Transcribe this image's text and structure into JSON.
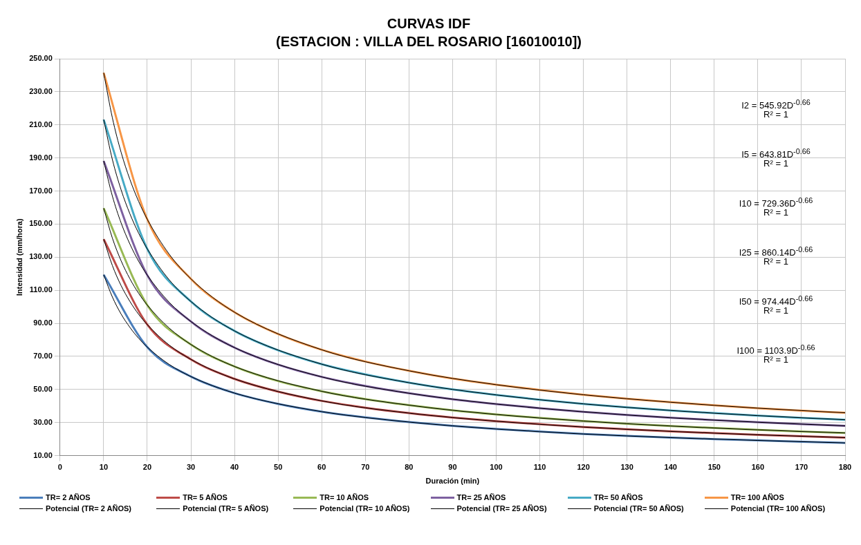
{
  "chart_data": {
    "type": "line",
    "title": "CURVAS IDF",
    "subtitle": "(ESTACION : VILLA DEL ROSARIO [16010010])",
    "xlabel": "Duración (min)",
    "ylabel": "Intensidad (mm/hora)",
    "xlim": [
      0,
      180
    ],
    "xticks": [
      0,
      10,
      20,
      30,
      40,
      50,
      60,
      70,
      80,
      90,
      100,
      110,
      120,
      130,
      140,
      150,
      160,
      170,
      180
    ],
    "ylim": [
      10,
      250
    ],
    "yticks": [
      {
        "value": 10,
        "label": "10.00"
      },
      {
        "value": 30,
        "label": "30.00"
      },
      {
        "value": 50,
        "label": "50.00"
      },
      {
        "value": 70,
        "label": "70.00"
      },
      {
        "value": 90,
        "label": "90.00"
      },
      {
        "value": 110,
        "label": "110.00"
      },
      {
        "value": 130,
        "label": "130.00"
      },
      {
        "value": 150,
        "label": "150.00"
      },
      {
        "value": 170,
        "label": "170.00"
      },
      {
        "value": 190,
        "label": "190.00"
      },
      {
        "value": 210,
        "label": "210.00"
      },
      {
        "value": 230,
        "label": "230.00"
      },
      {
        "value": 250,
        "label": "250.00"
      }
    ],
    "grid": true,
    "legend": "bottom",
    "marker": "none",
    "line_style": "solid",
    "x": [
      10,
      20,
      30,
      40,
      50,
      60,
      70,
      80,
      90,
      100,
      110,
      120,
      130,
      140,
      150,
      160,
      170,
      180
    ],
    "series": [
      {
        "name": "TR= 2 AÑOS",
        "color": "#4a7ebb",
        "values": [
          119.4,
          75.6,
          57.8,
          47.8,
          41.3,
          36.6,
          33.1,
          30.3,
          28.0,
          26.1,
          24.6,
          23.1,
          21.9,
          20.9,
          20.0,
          19.2,
          18.4,
          17.7
        ]
      },
      {
        "name": "TR= 5 AÑOS",
        "color": "#be4b48",
        "values": [
          140.9,
          89.2,
          68.2,
          56.4,
          48.7,
          43.1,
          39.0,
          35.7,
          33.0,
          30.8,
          29.0,
          27.3,
          25.9,
          24.7,
          23.6,
          22.6,
          21.7,
          20.9
        ]
      },
      {
        "name": "TR= 10 AÑOS",
        "color": "#98b954",
        "values": [
          159.6,
          101.0,
          77.2,
          63.9,
          55.1,
          48.9,
          44.2,
          40.5,
          37.4,
          34.9,
          32.8,
          30.9,
          29.3,
          27.9,
          26.7,
          25.6,
          24.6,
          23.7
        ]
      },
      {
        "name": "TR= 25 AÑOS",
        "color": "#7d60a0",
        "values": [
          188.2,
          119.1,
          91.1,
          75.3,
          65.0,
          57.6,
          52.1,
          47.7,
          44.1,
          41.2,
          38.7,
          36.5,
          34.6,
          32.9,
          31.5,
          30.2,
          29.0,
          28.0
        ]
      },
      {
        "name": "TR= 50 AÑOS",
        "color": "#46aac5",
        "values": [
          213.2,
          135.0,
          103.2,
          85.4,
          73.7,
          65.3,
          59.1,
          54.1,
          50.0,
          46.7,
          43.8,
          41.3,
          39.2,
          37.3,
          35.7,
          34.2,
          32.8,
          31.7
        ]
      },
      {
        "name": "TR= 100 AÑOS",
        "color": "#f79646",
        "values": [
          241.5,
          152.9,
          116.9,
          96.7,
          83.5,
          74.0,
          66.9,
          61.3,
          56.6,
          52.9,
          49.7,
          46.8,
          44.4,
          42.3,
          40.4,
          38.7,
          37.2,
          35.9
        ]
      },
      {
        "name": "Potencial (TR= 2 AÑOS)",
        "color": "#000000",
        "x": [
          10,
          12,
          14,
          16,
          18,
          20,
          25,
          30,
          40,
          60,
          80,
          100,
          120,
          140,
          160,
          180
        ],
        "values": [
          119.4,
          105.9,
          95.6,
          87.6,
          81.0,
          75.6,
          65.2,
          57.8,
          47.8,
          36.6,
          30.3,
          26.1,
          23.1,
          20.9,
          19.2,
          17.7
        ]
      },
      {
        "name": "Potencial (TR= 5 AÑOS)",
        "color": "#000000",
        "x": [
          10,
          12,
          14,
          16,
          18,
          20,
          25,
          30,
          40,
          60,
          80,
          100,
          120,
          140,
          160,
          180
        ],
        "values": [
          140.9,
          124.9,
          112.8,
          103.3,
          95.5,
          89.2,
          76.9,
          68.2,
          56.4,
          43.1,
          35.7,
          30.8,
          27.3,
          24.7,
          22.6,
          20.9
        ]
      },
      {
        "name": "Potencial (TR= 10 AÑOS)",
        "color": "#000000",
        "x": [
          10,
          12,
          14,
          16,
          18,
          20,
          25,
          30,
          40,
          60,
          80,
          100,
          120,
          140,
          160,
          180
        ],
        "values": [
          159.6,
          141.5,
          127.8,
          117.0,
          108.2,
          101.0,
          87.2,
          77.2,
          63.9,
          48.9,
          40.5,
          34.9,
          30.9,
          27.9,
          25.6,
          23.7
        ]
      },
      {
        "name": "Potencial (TR= 25 AÑOS)",
        "color": "#000000",
        "x": [
          10,
          12,
          14,
          16,
          18,
          20,
          25,
          30,
          40,
          60,
          80,
          100,
          120,
          140,
          160,
          180
        ],
        "values": [
          188.2,
          166.9,
          150.7,
          138.0,
          127.6,
          119.1,
          102.8,
          91.1,
          75.3,
          57.6,
          47.7,
          41.2,
          36.5,
          32.9,
          30.2,
          28.0
        ]
      },
      {
        "name": "Potencial (TR= 50 AÑOS)",
        "color": "#000000",
        "x": [
          10,
          12,
          14,
          16,
          18,
          20,
          25,
          30,
          40,
          60,
          80,
          100,
          120,
          140,
          160,
          180
        ],
        "values": [
          213.2,
          189.0,
          170.7,
          156.3,
          144.6,
          135.0,
          116.4,
          103.2,
          85.4,
          65.3,
          54.1,
          46.7,
          41.3,
          37.3,
          34.2,
          31.7
        ]
      },
      {
        "name": "Potencial (TR= 100 AÑOS)",
        "color": "#000000",
        "x": [
          10,
          12,
          14,
          16,
          18,
          20,
          25,
          30,
          40,
          60,
          80,
          100,
          120,
          140,
          160,
          180
        ],
        "values": [
          241.5,
          214.2,
          193.4,
          177.1,
          163.8,
          152.9,
          131.9,
          116.9,
          96.7,
          74.0,
          61.3,
          52.9,
          46.8,
          42.3,
          38.7,
          35.9
        ]
      }
    ],
    "annotations": [
      "I2 = 545.92D$^{-0.66}$",
      "R² = 1",
      "I5 = 643.81D$^{-0.66}$",
      "R² = 1",
      "I10 = 729.36D$^{-0.66}$",
      "R² = 1",
      "I25 = 860.14D$^{-0.66}$",
      "R² = 1",
      "I50 = 974.44D$^{-0.66}$",
      "R² = 1",
      "I100 = 1103.9D$^{-0.66}$",
      "R² = 1"
    ]
  }
}
